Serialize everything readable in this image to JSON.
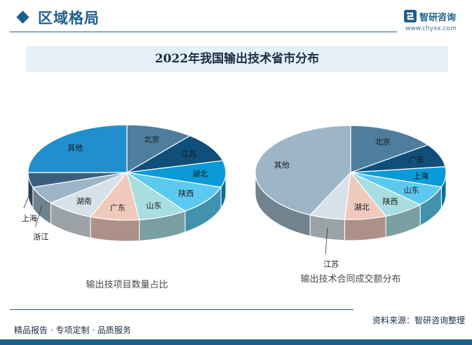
{
  "header": {
    "section_title": "区域格局",
    "brand_name": "智研咨询",
    "brand_url": "www.chyxx.com",
    "colors": {
      "brand": "#1e5f8c",
      "title_band": "#e6f0f8"
    }
  },
  "title": "2022年我国输出技术省市分布",
  "chart_data": [
    {
      "type": "pie",
      "style": "3d-tilted",
      "caption": "输出技项目数量占比",
      "slices": [
        {
          "label": "北京",
          "value": 11.0,
          "color": "#4f7d9d"
        },
        {
          "label": "江苏",
          "value": 10.0,
          "color": "#0f4f7a"
        },
        {
          "label": "湖北",
          "value": 9.0,
          "color": "#0b9ad8"
        },
        {
          "label": "陕西",
          "value": 10.0,
          "color": "#5ccaf0"
        },
        {
          "label": "山东",
          "value": 8.0,
          "color": "#a8dde1"
        },
        {
          "label": "广东",
          "value": 8.0,
          "color": "#f0c9bd"
        },
        {
          "label": "湖南",
          "value": 8.0,
          "color": "#d7e2e8"
        },
        {
          "label": "浙江",
          "value": 6.0,
          "color": "#9cb6c7"
        },
        {
          "label": "上海",
          "value": 5.0,
          "color": "#3a5f7e"
        },
        {
          "label": "其他",
          "value": 25.0,
          "color": "#1f8fcf"
        }
      ]
    },
    {
      "type": "pie",
      "style": "3d-tilted",
      "caption": "输出技术合同成交额分布",
      "slices": [
        {
          "label": "北京",
          "value": 15.0,
          "color": "#4f7d9d"
        },
        {
          "label": "广东",
          "value": 8.0,
          "color": "#0f4f7a"
        },
        {
          "label": "上海",
          "value": 7.0,
          "color": "#0b9ad8"
        },
        {
          "label": "山东",
          "value": 7.0,
          "color": "#5ccaf0"
        },
        {
          "label": "陕西",
          "value": 7.0,
          "color": "#a8dde1"
        },
        {
          "label": "湖北",
          "value": 7.0,
          "color": "#f0c9bd"
        },
        {
          "label": "江苏",
          "value": 6.0,
          "color": "#d7e2e8"
        },
        {
          "label": "其他",
          "value": 43.0,
          "color": "#9cb6c7"
        }
      ]
    }
  ],
  "footer": {
    "tagline": "精品报告 · 专项定制 · 品质服务",
    "source": "资料来源：智研咨询整理"
  }
}
